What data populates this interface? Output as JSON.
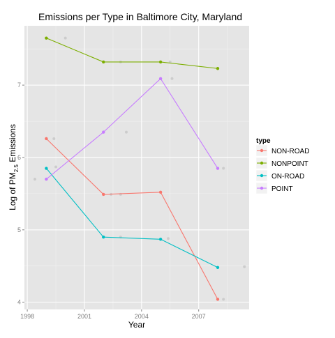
{
  "chart_data": {
    "type": "line",
    "title": "Emissions per Type in Baltimore City, Maryland",
    "xlabel": "Year",
    "ylabel": {
      "prefix": "Log of PM",
      "subscript": "2.5",
      "suffix": " Emissions"
    },
    "x": [
      1999,
      2002,
      2005,
      2008
    ],
    "xlim": [
      1997.85,
      2009.65
    ],
    "ylim": [
      3.9,
      7.82
    ],
    "xticks": [
      "1998",
      "2001",
      "2004",
      "2007"
    ],
    "yticks": [
      "4",
      "5",
      "6",
      "7"
    ],
    "grid": true,
    "legend": {
      "title": "type",
      "position": "right"
    },
    "series": [
      {
        "name": "NON-ROAD",
        "color": "#F8766D",
        "values": [
          6.26,
          5.49,
          5.52,
          4.04
        ]
      },
      {
        "name": "NONPOINT",
        "color": "#7CAE00",
        "values": [
          7.65,
          7.32,
          7.32,
          7.23
        ]
      },
      {
        "name": "ON-ROAD",
        "color": "#00BFC4",
        "values": [
          5.85,
          4.9,
          4.87,
          4.48
        ]
      },
      {
        "name": "POINT",
        "color": "#C77CFF",
        "values": [
          5.7,
          6.35,
          7.09,
          5.85
        ]
      }
    ],
    "jitter_points": [
      {
        "x": 1998.4,
        "y": 5.7
      },
      {
        "x": 1999.4,
        "y": 6.26
      },
      {
        "x": 1999.5,
        "y": 5.87
      },
      {
        "x": 2000.0,
        "y": 7.65
      },
      {
        "x": 2002.4,
        "y": 5.49
      },
      {
        "x": 2002.9,
        "y": 7.32
      },
      {
        "x": 2002.9,
        "y": 5.49
      },
      {
        "x": 2002.9,
        "y": 4.9
      },
      {
        "x": 2003.2,
        "y": 6.35
      },
      {
        "x": 2005.4,
        "y": 4.88
      },
      {
        "x": 2005.5,
        "y": 7.32
      },
      {
        "x": 2005.6,
        "y": 7.09
      },
      {
        "x": 2008.3,
        "y": 5.85
      },
      {
        "x": 2008.3,
        "y": 4.04
      },
      {
        "x": 2009.4,
        "y": 4.49
      }
    ]
  }
}
